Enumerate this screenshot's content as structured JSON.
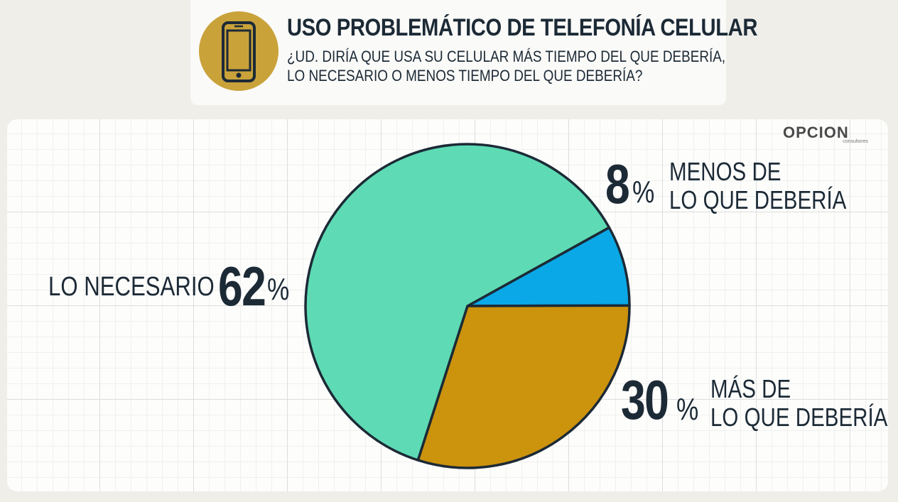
{
  "header": {
    "title": "USO PROBLEMÁTICO DE TELEFONÍA CELULAR",
    "subtitle_line1": "¿UD. DIRÍA QUE USA SU CELULAR MÁS TIEMPO DEL QUE DEBERÍA,",
    "subtitle_line2": "LO NECESARIO O MENOS TIEMPO DEL QUE DEBERÍA?",
    "icon": "smartphone-icon"
  },
  "brand": {
    "name": "OPCION",
    "tagline": "consultores"
  },
  "colors": {
    "badge": "#c9a23a",
    "text": "#1c2a36",
    "slice_necesario": "#5edbb4",
    "slice_menos": "#0aa8e6",
    "slice_mas": "#cc930d"
  },
  "chart_data": {
    "type": "pie",
    "title": "",
    "slices": [
      {
        "label": "LO NECESARIO",
        "value": 62,
        "display": "62",
        "unit": "%",
        "color": "#5edbb4"
      },
      {
        "label": "MENOS DE LO QUE DEBERÍA",
        "label_line1": "MENOS DE",
        "label_line2": "LO QUE DEBERÍA",
        "value": 8,
        "display": "8",
        "unit": "%",
        "color": "#0aa8e6"
      },
      {
        "label": "MÁS DE LO QUE DEBERÍA",
        "label_line1": "MÁS DE",
        "label_line2": "LO QUE DEBERÍA",
        "value": 30,
        "display": "30",
        "unit": "%",
        "color": "#cc930d"
      }
    ]
  }
}
